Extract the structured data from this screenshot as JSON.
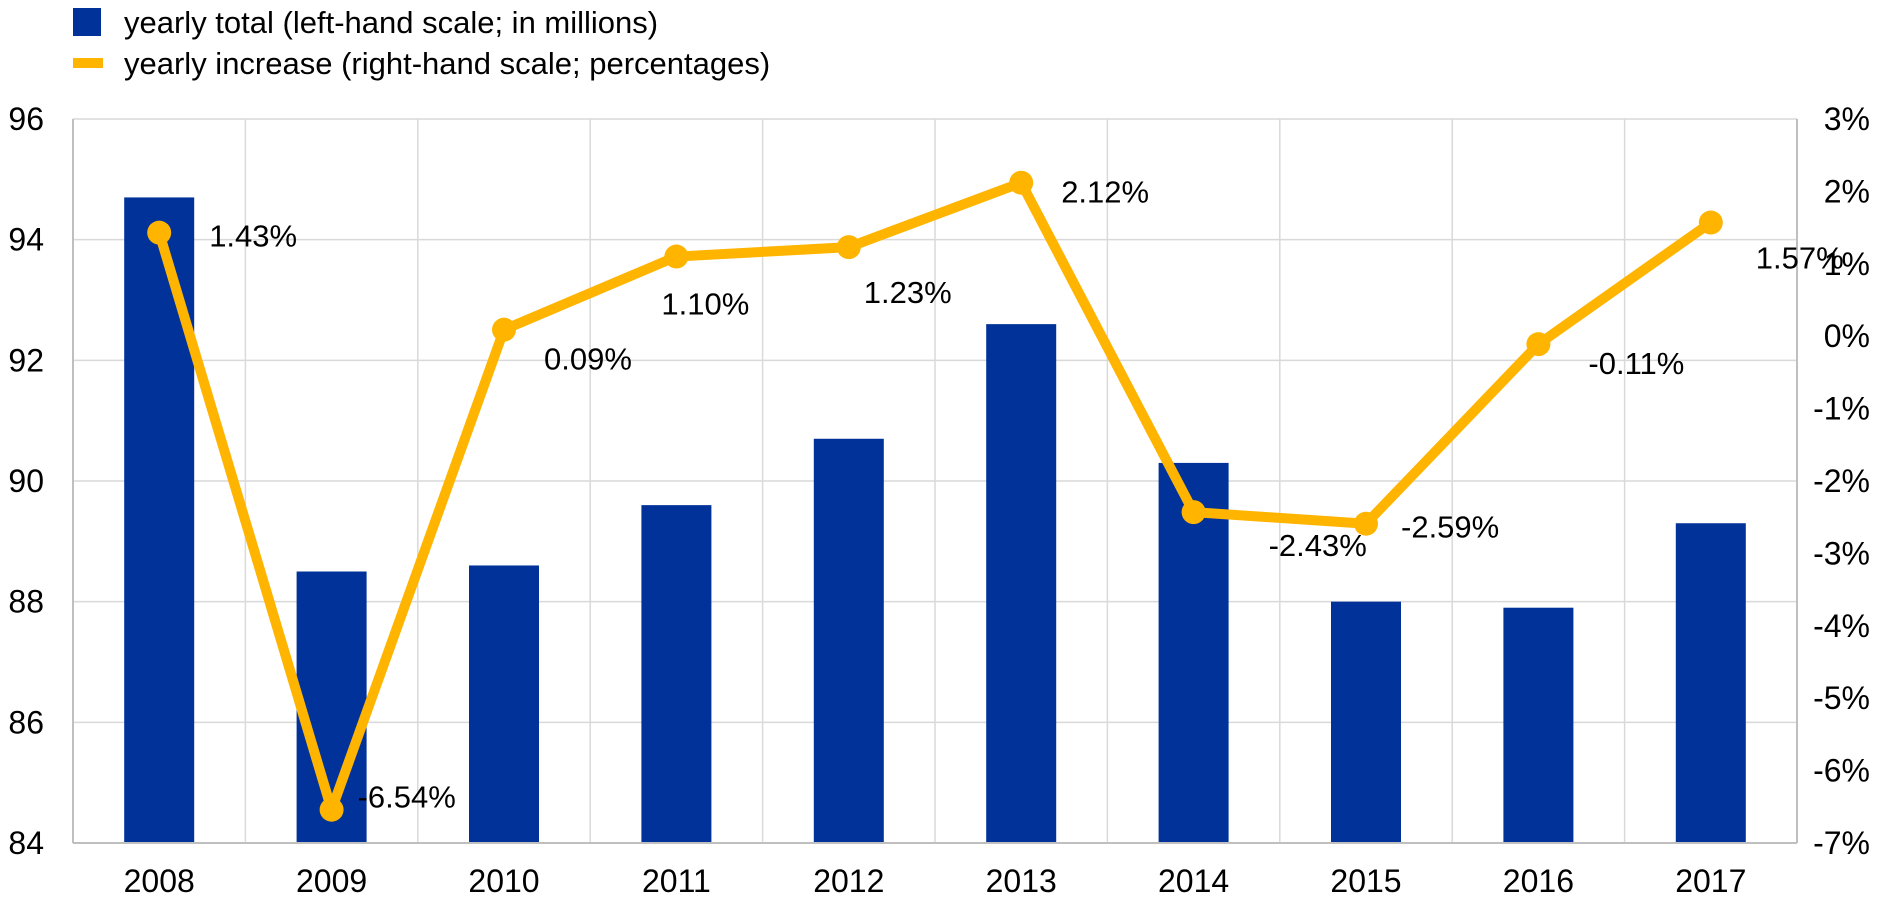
{
  "chart_data": {
    "type": "bar",
    "categories": [
      "2008",
      "2009",
      "2010",
      "2011",
      "2012",
      "2013",
      "2014",
      "2015",
      "2016",
      "2017"
    ],
    "series": [
      {
        "name": "yearly total (left-hand scale; in millions)",
        "type": "bar",
        "axis": "left",
        "values": [
          94.7,
          88.5,
          88.6,
          89.6,
          90.7,
          92.6,
          90.3,
          88.0,
          87.9,
          89.3
        ]
      },
      {
        "name": "yearly increase (right-hand scale; percentages)",
        "type": "line",
        "axis": "right",
        "values": [
          1.43,
          -6.54,
          0.09,
          1.1,
          1.23,
          2.12,
          -2.43,
          -2.59,
          -0.11,
          1.57
        ],
        "labels": [
          "1.43%",
          "-6.54%",
          "0.09%",
          "1.10%",
          "1.23%",
          "2.12%",
          "-2.43%",
          "-2.59%",
          "-0.11%",
          "1.57%"
        ]
      }
    ],
    "y_left": {
      "ylim": [
        84,
        96
      ],
      "ticks": [
        "84",
        "86",
        "88",
        "90",
        "92",
        "94",
        "96"
      ]
    },
    "y_right": {
      "ylim": [
        -7,
        3
      ],
      "ticks": [
        "-7%",
        "-6%",
        "-5%",
        "-4%",
        "-3%",
        "-2%",
        "-1%",
        "0%",
        "1%",
        "2%",
        "3%"
      ]
    },
    "grid": true,
    "legend_position": "top-left",
    "colors": {
      "bar": "#003299",
      "line": "#FFB400",
      "grid": "#D9D9D9",
      "axis": "#BFBFBF"
    }
  }
}
